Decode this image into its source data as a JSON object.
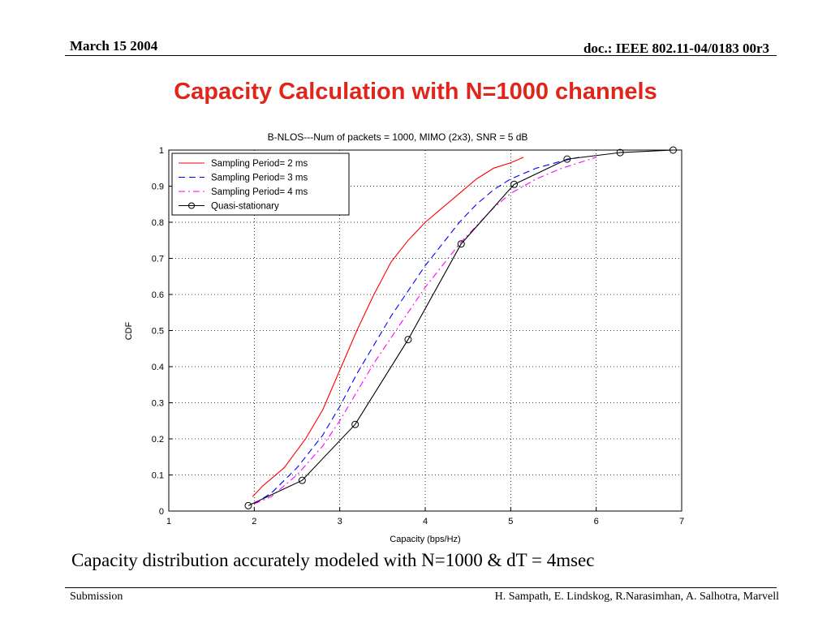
{
  "header": {
    "date": "March 15 2004",
    "doc_id": "doc.: IEEE 802.11-04/0183 00r3"
  },
  "slide_title": "Capacity Calculation with N=1000 channels",
  "caption": "Capacity distribution accurately modeled with N=1000 & dT = 4msec",
  "footer": {
    "left": "Submission",
    "right": "H. Sampath, E. Lindskog, R.Narasimhan,  A. Salhotra,  Marvell"
  },
  "colors": {
    "title": "#e0251b",
    "series_2ms": "#ff0000",
    "series_3ms": "#0000ff",
    "series_4ms": "#ff00ff",
    "series_quasi": "#000000"
  },
  "chart_data": {
    "type": "line",
    "title": "B-NLOS---Num of packets = 1000, MIMO (2x3), SNR = 5 dB",
    "xlabel": "Capacity (bps/Hz)",
    "ylabel": "CDF",
    "xlim": [
      1,
      7
    ],
    "ylim": [
      0,
      1
    ],
    "xticks": [
      "1",
      "2",
      "3",
      "4",
      "5",
      "6",
      "7"
    ],
    "yticks": [
      "0",
      "0.1",
      "0.2",
      "0.3",
      "0.4",
      "0.5",
      "0.6",
      "0.7",
      "0.8",
      "0.9",
      "1"
    ],
    "grid": true,
    "legend_position": "top-left",
    "series": [
      {
        "name": "Sampling Period= 2 ms",
        "style": "solid",
        "color": "#ff0000",
        "x": [
          1.98,
          2.1,
          2.35,
          2.6,
          2.8,
          3.0,
          3.2,
          3.4,
          3.6,
          3.8,
          4.0,
          4.2,
          4.4,
          4.6,
          4.8,
          5.0,
          5.15
        ],
        "y": [
          0.04,
          0.07,
          0.12,
          0.2,
          0.28,
          0.39,
          0.5,
          0.6,
          0.69,
          0.75,
          0.8,
          0.84,
          0.88,
          0.92,
          0.95,
          0.965,
          0.98
        ]
      },
      {
        "name": "Sampling Period= 3 ms",
        "style": "dashed",
        "color": "#0000ff",
        "x": [
          2.0,
          2.2,
          2.5,
          2.8,
          3.0,
          3.2,
          3.4,
          3.6,
          3.8,
          4.0,
          4.2,
          4.4,
          4.6,
          4.8,
          5.0,
          5.3,
          5.6,
          5.8
        ],
        "y": [
          0.02,
          0.05,
          0.12,
          0.21,
          0.29,
          0.38,
          0.46,
          0.54,
          0.61,
          0.68,
          0.74,
          0.8,
          0.85,
          0.89,
          0.92,
          0.95,
          0.97,
          0.98
        ]
      },
      {
        "name": "Sampling Period= 4 ms",
        "style": "dashdot",
        "color": "#ff00ff",
        "x": [
          2.0,
          2.2,
          2.5,
          2.8,
          3.0,
          3.2,
          3.4,
          3.6,
          3.8,
          4.0,
          4.2,
          4.4,
          4.6,
          4.8,
          5.0,
          5.3,
          5.6,
          6.0
        ],
        "y": [
          0.02,
          0.04,
          0.1,
          0.18,
          0.25,
          0.33,
          0.41,
          0.48,
          0.55,
          0.62,
          0.68,
          0.74,
          0.79,
          0.84,
          0.88,
          0.92,
          0.95,
          0.98
        ]
      },
      {
        "name": "Quasi-stationary",
        "style": "solid-circle",
        "color": "#000000",
        "x": [
          1.93,
          2.56,
          3.18,
          3.8,
          4.42,
          5.04,
          5.66,
          6.28,
          6.9
        ],
        "y": [
          0.015,
          0.085,
          0.24,
          0.475,
          0.74,
          0.905,
          0.975,
          0.993,
          1.0
        ]
      }
    ]
  }
}
